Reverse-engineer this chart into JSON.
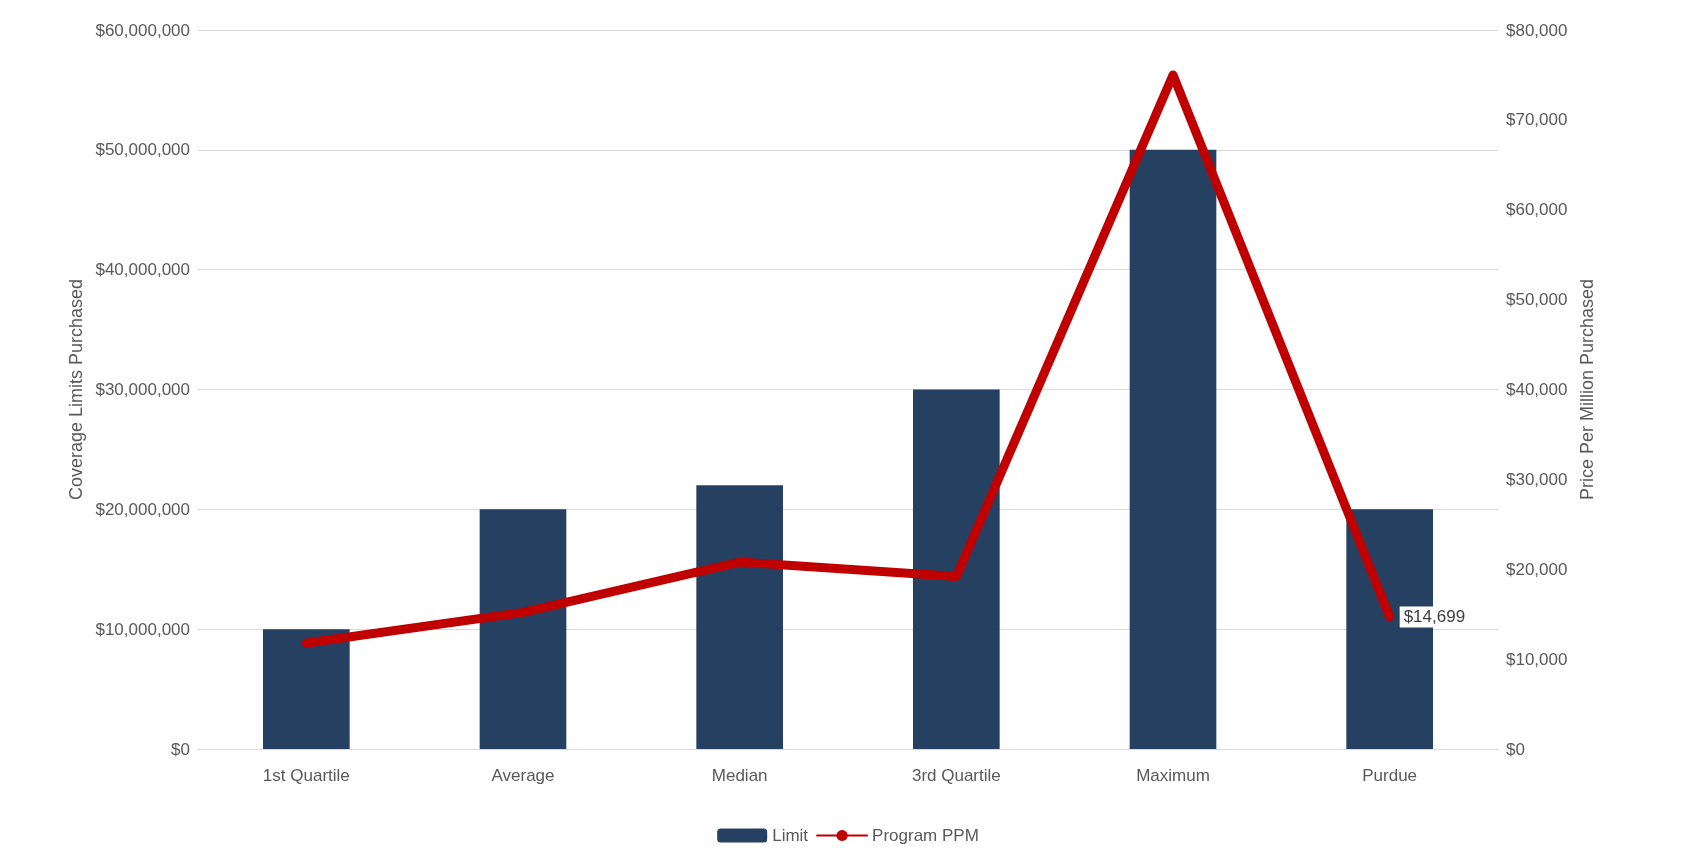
{
  "chart_data": {
    "type": "bar",
    "ylabel": "Coverage Limits Purchased",
    "y2label": "Price Per Million Purchased",
    "categories": [
      "1st Quartile",
      "Average",
      "Median",
      "3rd Quartile",
      "Maximum",
      "Purdue"
    ],
    "series": [
      {
        "name": "Limit",
        "color": "#264061",
        "values": [
          10000000,
          20000000,
          22000000,
          30000000,
          50000000,
          20000000
        ]
      },
      {
        "name": "Program PPM",
        "type": "line",
        "axis": "y2",
        "color": "#c00000",
        "values": [
          11800,
          15200,
          20800,
          19200,
          75000,
          14699
        ],
        "value_labels": [
          null,
          null,
          null,
          null,
          null,
          "$14,699"
        ]
      }
    ],
    "ylim": [
      0,
      60000000
    ],
    "yticks": [
      {
        "value": 0,
        "label": "$0"
      },
      {
        "value": 10000000,
        "label": "$10,000,000"
      },
      {
        "value": 20000000,
        "label": "$20,000,000"
      },
      {
        "value": 30000000,
        "label": "$30,000,000"
      },
      {
        "value": 40000000,
        "label": "$40,000,000"
      },
      {
        "value": 50000000,
        "label": "$50,000,000"
      },
      {
        "value": 60000000,
        "label": "$60,000,000"
      }
    ],
    "y2lim": [
      0,
      80000
    ],
    "y2ticks": [
      {
        "value": 0,
        "label": "$0"
      },
      {
        "value": 10000,
        "label": "$10,000"
      },
      {
        "value": 20000,
        "label": "$20,000"
      },
      {
        "value": 30000,
        "label": "$30,000"
      },
      {
        "value": 40000,
        "label": "$40,000"
      },
      {
        "value": 50000,
        "label": "$50,000"
      },
      {
        "value": 60000,
        "label": "$60,000"
      },
      {
        "value": 70000,
        "label": "$70,000"
      },
      {
        "value": 80000,
        "label": "$80,000"
      }
    ],
    "grid": "y",
    "legend": "bottom",
    "marker": "none"
  }
}
